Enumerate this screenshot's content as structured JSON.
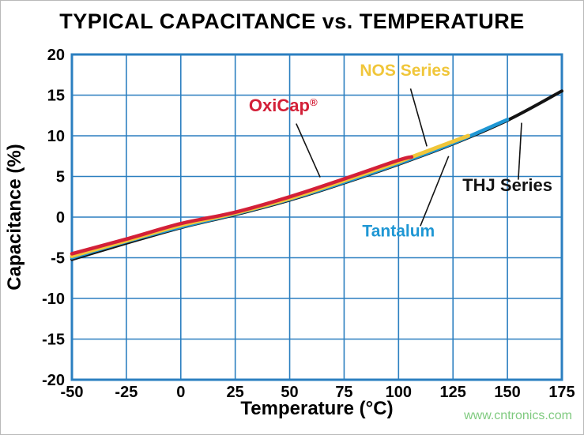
{
  "watermark": {
    "text": "www.cntronics.com",
    "color": "#7fca7f"
  },
  "chart_data": {
    "type": "line",
    "title": "TYPICAL CAPACITANCE vs. TEMPERATURE",
    "xlabel": "Temperature (°C)",
    "ylabel": "Capacitance (%)",
    "xlim": [
      -50,
      175
    ],
    "ylim": [
      -20,
      20
    ],
    "x_ticks": [
      -50,
      -25,
      0,
      25,
      50,
      75,
      100,
      125,
      150,
      175
    ],
    "y_ticks": [
      20,
      15,
      10,
      5,
      0,
      -5,
      -10,
      -15,
      -20
    ],
    "grid": true,
    "grid_color": "#2b7fc0",
    "legend_position": "none (inline labels with leader lines)",
    "series": [
      {
        "name": "THJ Series",
        "color": "#131313",
        "width": 4,
        "x": [
          -50,
          -25,
          0,
          25,
          50,
          75,
          100,
          125,
          150,
          175
        ],
        "values": [
          -5.2,
          -3.2,
          -1.3,
          0.3,
          2.1,
          4.2,
          6.5,
          9.0,
          11.9,
          15.5
        ]
      },
      {
        "name": "Tantalum",
        "color": "#1f97d4",
        "width": 4.5,
        "x": [
          -50,
          -25,
          0,
          25,
          50,
          75,
          100,
          125,
          150
        ],
        "values": [
          -5.0,
          -3.0,
          -1.2,
          0.4,
          2.2,
          4.3,
          6.6,
          9.1,
          12.0
        ]
      },
      {
        "name": "NOS Series",
        "color": "#f0c63a",
        "width": 5,
        "x": [
          -50,
          -25,
          0,
          25,
          50,
          75,
          100,
          125,
          132
        ],
        "values": [
          -4.8,
          -2.9,
          -1.0,
          0.5,
          2.3,
          4.5,
          6.8,
          9.3,
          10.0
        ]
      },
      {
        "name": "OxiCap®",
        "color": "#d32038",
        "width": 4.5,
        "x": [
          -50,
          -25,
          0,
          25,
          50,
          75,
          100,
          106
        ],
        "values": [
          -4.5,
          -2.7,
          -0.8,
          0.6,
          2.5,
          4.7,
          7.0,
          7.4
        ]
      }
    ],
    "annotations": [
      {
        "label": "OxiCap®",
        "color": "#d32038",
        "t": 47,
        "c": 13.0,
        "font": 22,
        "leader": {
          "from": [
            53,
            11.5
          ],
          "to": [
            64,
            4.9
          ]
        }
      },
      {
        "label": "NOS Series",
        "color": "#f0c63a",
        "t": 103,
        "c": 17.4,
        "font": 21,
        "leader": {
          "from": [
            105.5,
            15.8
          ],
          "to": [
            113,
            8.7
          ]
        }
      },
      {
        "label": "Tantalum",
        "color": "#1f97d4",
        "t": 100,
        "c": -2.4,
        "font": 21,
        "leader": {
          "from": [
            110,
            -1.1
          ],
          "to": [
            123,
            7.5
          ]
        }
      },
      {
        "label": "THJ Series",
        "color": "#131313",
        "t": 150,
        "c": 3.2,
        "font": 22,
        "leader": {
          "from": [
            155,
            4.6
          ],
          "to": [
            156.5,
            11.6
          ]
        }
      }
    ]
  }
}
